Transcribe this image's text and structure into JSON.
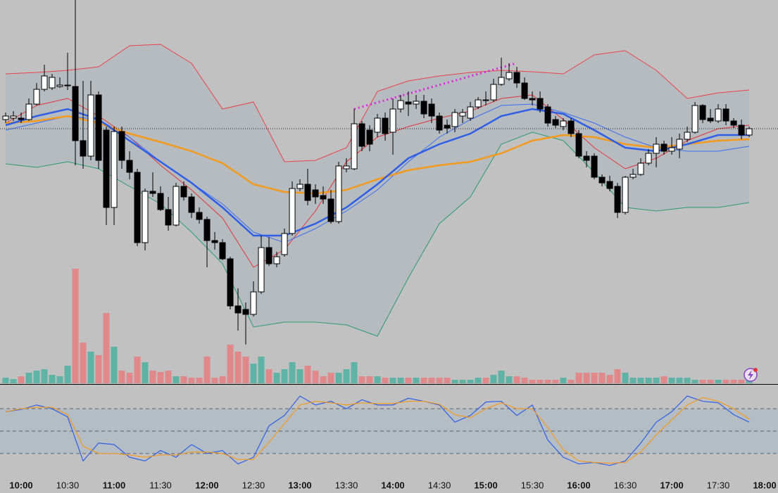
{
  "chart_data": [
    {
      "type": "candlestick",
      "xlim": [
        586.36,
        1088.6
      ],
      "ylim": [
        455,
        1000
      ],
      "xticks": [
        {
          "value": 600,
          "label": "10:00"
        },
        {
          "value": 630,
          "label": "10:30"
        },
        {
          "value": 660,
          "label": "11:00"
        },
        {
          "value": 690,
          "label": "11:30"
        },
        {
          "value": 720,
          "label": "12:00"
        },
        {
          "value": 750,
          "label": "12:30"
        },
        {
          "value": 780,
          "label": "13:00"
        },
        {
          "value": 810,
          "label": "13:30"
        },
        {
          "value": 840,
          "label": "14:00"
        },
        {
          "value": 870,
          "label": "14:30"
        },
        {
          "value": 900,
          "label": "15:00"
        },
        {
          "value": 930,
          "label": "15:30"
        },
        {
          "value": 960,
          "label": "16:00"
        },
        {
          "value": 990,
          "label": "16:30"
        },
        {
          "value": 1020,
          "label": "17:00"
        },
        {
          "value": 1050,
          "label": "17:30"
        },
        {
          "value": 1080,
          "label": "18:00"
        }
      ],
      "x": [
        590,
        595,
        600,
        605,
        610,
        615,
        620,
        625,
        630,
        635,
        640,
        645,
        650,
        655,
        660,
        665,
        670,
        675,
        680,
        685,
        690,
        695,
        700,
        705,
        710,
        715,
        720,
        725,
        730,
        735,
        740,
        745,
        750,
        755,
        760,
        765,
        770,
        775,
        780,
        785,
        790,
        795,
        800,
        805,
        810,
        815,
        820,
        825,
        830,
        835,
        840,
        845,
        850,
        855,
        860,
        865,
        870,
        875,
        880,
        885,
        890,
        895,
        900,
        905,
        910,
        915,
        920,
        925,
        930,
        935,
        940,
        945,
        950,
        955,
        960,
        965,
        970,
        975,
        980,
        985,
        990,
        995,
        1000,
        1005,
        1010,
        1015,
        1020,
        1025,
        1030,
        1035,
        1040,
        1045,
        1050,
        1055,
        1060,
        1065,
        1070
      ],
      "open": [
        830,
        832,
        832,
        830,
        852,
        873,
        875,
        877,
        878,
        877,
        800,
        778,
        865,
        815,
        705,
        813,
        772,
        755,
        655,
        728,
        725,
        702,
        680,
        735,
        720,
        698,
        688,
        658,
        655,
        632,
        565,
        560,
        553,
        585,
        648,
        625,
        638,
        668,
        732,
        738,
        730,
        722,
        717,
        685,
        760,
        760,
        824,
        815,
        812,
        832,
        812,
        845,
        855,
        852,
        856,
        852,
        835,
        822,
        820,
        835,
        832,
        848,
        858,
        858,
        880,
        888,
        897,
        882,
        860,
        860,
        848,
        830,
        820,
        828,
        810,
        778,
        778,
        748,
        742,
        735,
        698,
        748,
        752,
        768,
        782,
        795,
        785,
        788,
        802,
        812,
        850,
        832,
        828,
        845,
        828,
        822,
        808
      ],
      "high": [
        840,
        842,
        840,
        860,
        882,
        908,
        895,
        890,
        925,
        1000,
        885,
        885,
        870,
        820,
        820,
        820,
        785,
        760,
        732,
        755,
        735,
        720,
        740,
        742,
        725,
        705,
        692,
        670,
        660,
        635,
        590,
        570,
        600,
        665,
        663,
        642,
        675,
        742,
        745,
        760,
        738,
        735,
        730,
        770,
        775,
        845,
        828,
        822,
        838,
        840,
        860,
        865,
        870,
        865,
        865,
        860,
        840,
        830,
        845,
        845,
        855,
        862,
        870,
        888,
        918,
        910,
        905,
        890,
        870,
        870,
        852,
        835,
        832,
        832,
        815,
        785,
        782,
        752,
        750,
        740,
        750,
        760,
        775,
        788,
        805,
        800,
        805,
        810,
        820,
        855,
        852,
        845,
        852,
        852,
        832,
        830,
        820
      ],
      "low": [
        825,
        828,
        825,
        828,
        850,
        870,
        872,
        875,
        872,
        765,
        760,
        772,
        760,
        680,
        680,
        760,
        745,
        650,
        644,
        720,
        700,
        672,
        678,
        715,
        690,
        682,
        620,
        645,
        630,
        560,
        530,
        510,
        550,
        582,
        622,
        620,
        635,
        665,
        728,
        708,
        710,
        710,
        682,
        682,
        755,
        758,
        785,
        785,
        805,
        800,
        780,
        840,
        835,
        845,
        832,
        825,
        810,
        810,
        812,
        825,
        828,
        845,
        850,
        855,
        878,
        885,
        875,
        858,
        850,
        840,
        820,
        818,
        815,
        805,
        775,
        762,
        745,
        735,
        728,
        690,
        695,
        745,
        750,
        765,
        762,
        780,
        780,
        775,
        798,
        810,
        825,
        825,
        825,
        822,
        818,
        802,
        805
      ],
      "close": [
        835,
        835,
        830,
        852,
        873,
        892,
        890,
        879,
        879,
        800,
        778,
        865,
        772,
        705,
        813,
        772,
        755,
        655,
        728,
        725,
        702,
        680,
        735,
        720,
        698,
        688,
        658,
        655,
        632,
        565,
        555,
        553,
        585,
        648,
        625,
        635,
        668,
        732,
        738,
        715,
        720,
        717,
        685,
        764,
        764,
        824,
        792,
        795,
        832,
        810,
        845,
        857,
        852,
        856,
        838,
        835,
        815,
        818,
        840,
        840,
        848,
        858,
        857,
        880,
        890,
        897,
        882,
        860,
        858,
        845,
        825,
        822,
        828,
        810,
        778,
        772,
        748,
        740,
        732,
        698,
        748,
        752,
        768,
        782,
        795,
        785,
        790,
        802,
        812,
        850,
        830,
        828,
        845,
        828,
        822,
        808,
        817
      ],
      "up_color": "#ffffff",
      "down_color": "#000000",
      "volume": {
        "ylim": [
          0,
          545
        ],
        "up_color": "#5fb3a6",
        "down_color": "#e0888a",
        "values": [
          8,
          6,
          10,
          15,
          18,
          20,
          12,
          10,
          25,
          163,
          58,
          45,
          40,
          100,
          52,
          18,
          15,
          38,
          30,
          18,
          16,
          18,
          10,
          10,
          8,
          8,
          38,
          8,
          10,
          55,
          45,
          38,
          28,
          38,
          20,
          15,
          20,
          30,
          20,
          25,
          18,
          10,
          15,
          15,
          20,
          30,
          10,
          10,
          10,
          8,
          8,
          8,
          8,
          8,
          8,
          8,
          8,
          8,
          5,
          5,
          5,
          8,
          8,
          12,
          18,
          10,
          10,
          8,
          5,
          5,
          5,
          5,
          8,
          5,
          15,
          15,
          15,
          15,
          12,
          20,
          15,
          8,
          8,
          8,
          8,
          10,
          8,
          8,
          8,
          5,
          5,
          5,
          5,
          5,
          5,
          5,
          5
        ]
      },
      "band": {
        "x": [
          590,
          610,
          630,
          650,
          670,
          690,
          710,
          730,
          750,
          770,
          790,
          810,
          830,
          850,
          870,
          890,
          910,
          930,
          950,
          970,
          990,
          1010,
          1030,
          1050,
          1070
        ],
        "fill": "#b6bbbf",
        "upper_color": "#e8434a",
        "lower_color": "#2a9a72",
        "upper": [
          895,
          897,
          900,
          905,
          935,
          937,
          910,
          845,
          855,
          770,
          772,
          790,
          870,
          885,
          892,
          897,
          900,
          898,
          895,
          922,
          928,
          900,
          860,
          868,
          872
        ],
        "lower": [
          767,
          762,
          770,
          760,
          735,
          710,
          670,
          625,
          535,
          542,
          542,
          538,
          522,
          605,
          682,
          720,
          795,
          812,
          800,
          755,
          705,
          700,
          705,
          705,
          712
        ]
      },
      "overlays": {
        "x": [
          590,
          610,
          630,
          650,
          670,
          690,
          710,
          730,
          750,
          770,
          790,
          810,
          830,
          850,
          870,
          890,
          910,
          930,
          950,
          970,
          990,
          1010,
          1030,
          1050,
          1070
        ],
        "series": [
          {
            "color": "#e0353d",
            "width": 1,
            "values": [
              825,
              850,
              860,
              835,
              805,
              765,
              730,
              690,
              620,
              645,
              700,
              770,
              805,
              820,
              832,
              842,
              860,
              865,
              830,
              790,
              760,
              775,
              800,
              817,
              822
            ]
          },
          {
            "color": "#3a6ff0",
            "width": 1,
            "values": [
              815,
              825,
              835,
              830,
              805,
              770,
              740,
              710,
              670,
              655,
              675,
              700,
              730,
              770,
              805,
              830,
              850,
              852,
              840,
              825,
              805,
              790,
              785,
              785,
              792
            ]
          },
          {
            "color": "#f39a1e",
            "width": 2.5,
            "values": [
              825,
              828,
              835,
              825,
              810,
              798,
              785,
              768,
              738,
              727,
              725,
              730,
              745,
              758,
              765,
              770,
              782,
              800,
              808,
              805,
              795,
              790,
              795,
              800,
              802
            ]
          },
          {
            "color": "#2e5fe6",
            "width": 2.5,
            "values": [
              822,
              835,
              845,
              830,
              800,
              770,
              740,
              705,
              665,
              665,
              682,
              705,
              738,
              775,
              795,
              810,
              835,
              845,
              838,
              815,
              790,
              785,
              795,
              808,
              808
            ]
          }
        ]
      },
      "trendline": {
        "x": [
          815,
          919.5
        ],
        "y": [
          845,
          910
        ],
        "color": "#e020e0"
      },
      "price_line": 817
    },
    {
      "type": "line",
      "xlim": [
        586.36,
        1088.6
      ],
      "ylim": [
        -11.25,
        111.25
      ],
      "levels": [
        80,
        50,
        20
      ],
      "band_fill": "#b4bcc4",
      "x": [
        590,
        600,
        610,
        620,
        630,
        640,
        650,
        660,
        670,
        680,
        690,
        700,
        710,
        720,
        730,
        740,
        750,
        760,
        770,
        780,
        790,
        800,
        810,
        820,
        830,
        840,
        850,
        860,
        870,
        880,
        890,
        900,
        910,
        920,
        930,
        940,
        950,
        960,
        970,
        980,
        990,
        1000,
        1010,
        1020,
        1030,
        1040,
        1050,
        1060,
        1070
      ],
      "series": [
        {
          "color": "#2e5fe6",
          "values": [
            76,
            79,
            85,
            80,
            69,
            10,
            34,
            32,
            15,
            10,
            24,
            15,
            32,
            20,
            24,
            6,
            15,
            57,
            71,
            97,
            85,
            90,
            80,
            92,
            85,
            85,
            94,
            90,
            85,
            62,
            71,
            89,
            90,
            71,
            85,
            38,
            15,
            6,
            8,
            4,
            10,
            34,
            62,
            76,
            97,
            90,
            88,
            72,
            62
          ]
        },
        {
          "color": "#f39a1e",
          "values": [
            76,
            80,
            82,
            82,
            72,
            30,
            20,
            20,
            18,
            15,
            18,
            18,
            22,
            22,
            20,
            12,
            12,
            35,
            60,
            85,
            90,
            88,
            85,
            88,
            87,
            87,
            90,
            90,
            86,
            72,
            68,
            80,
            88,
            80,
            80,
            55,
            25,
            10,
            8,
            7,
            8,
            22,
            45,
            65,
            85,
            95,
            90,
            80,
            66
          ]
        }
      ]
    }
  ]
}
